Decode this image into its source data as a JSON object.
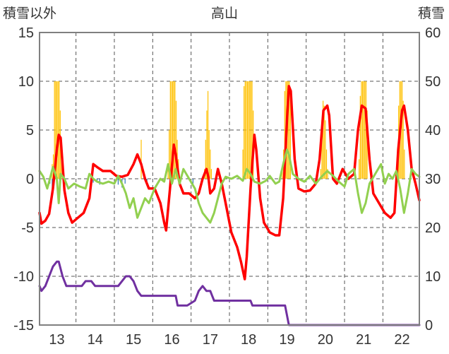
{
  "chart_data": {
    "type": "line",
    "title": "高山",
    "ylabel_left": "積雪以外",
    "ylabel_right": "積雪",
    "ylim_left": [
      -15,
      15
    ],
    "ylim_right": [
      0,
      60
    ],
    "yticks_left": [
      "15",
      "10",
      "5",
      "0",
      "-5",
      "-10",
      "-15"
    ],
    "yticks_right": [
      "60",
      "50",
      "40",
      "30",
      "20",
      "10",
      "0"
    ],
    "xlim": [
      12.55,
      22.45
    ],
    "x_categories": [
      "13",
      "14",
      "15",
      "16",
      "17",
      "18",
      "19",
      "20",
      "21",
      "22"
    ],
    "grid": true,
    "colors": {
      "red_line": "#ff0000",
      "green_line": "#92d050",
      "purple_line": "#7030a0",
      "bars": "#ffc000",
      "blue_bars": "#2e75b6",
      "axis": "#808080",
      "grid": "#555555"
    },
    "series": [
      {
        "style": "line",
        "color_key": "red_line",
        "axis": "left",
        "points": [
          [
            12.55,
            -3.5
          ],
          [
            12.6,
            -4.6
          ],
          [
            12.7,
            -4.3
          ],
          [
            12.8,
            -3.6
          ],
          [
            12.9,
            -1.0
          ],
          [
            13.0,
            3.0
          ],
          [
            13.05,
            4.5
          ],
          [
            13.1,
            4.2
          ],
          [
            13.2,
            -1.2
          ],
          [
            13.3,
            -3.5
          ],
          [
            13.4,
            -4.5
          ],
          [
            13.55,
            -4.0
          ],
          [
            13.7,
            -3.5
          ],
          [
            13.85,
            -2.0
          ],
          [
            13.95,
            1.5
          ],
          [
            14.05,
            1.2
          ],
          [
            14.2,
            0.8
          ],
          [
            14.4,
            0.8
          ],
          [
            14.55,
            0.3
          ],
          [
            14.7,
            0.2
          ],
          [
            14.85,
            0.4
          ],
          [
            15.0,
            1.5
          ],
          [
            15.1,
            2.5
          ],
          [
            15.2,
            1.5
          ],
          [
            15.3,
            0.0
          ],
          [
            15.4,
            -1.0
          ],
          [
            15.55,
            -1.0
          ],
          [
            15.7,
            -2.5
          ],
          [
            15.8,
            -4.5
          ],
          [
            15.85,
            -5.3
          ],
          [
            15.95,
            -1.0
          ],
          [
            16.05,
            3.5
          ],
          [
            16.1,
            2.5
          ],
          [
            16.2,
            -0.5
          ],
          [
            16.3,
            -1.5
          ],
          [
            16.45,
            -1.5
          ],
          [
            16.6,
            -2.0
          ],
          [
            16.7,
            -1.5
          ],
          [
            16.8,
            0.0
          ],
          [
            16.9,
            1.0
          ],
          [
            16.95,
            0.2
          ],
          [
            17.0,
            -1.5
          ],
          [
            17.1,
            -1.0
          ],
          [
            17.2,
            1.0
          ],
          [
            17.3,
            -0.5
          ],
          [
            17.4,
            -2.5
          ],
          [
            17.55,
            -5.5
          ],
          [
            17.7,
            -7.0
          ],
          [
            17.8,
            -8.5
          ],
          [
            17.9,
            -10.3
          ],
          [
            17.95,
            -8.0
          ],
          [
            18.05,
            -1.0
          ],
          [
            18.15,
            4.5
          ],
          [
            18.2,
            3.0
          ],
          [
            18.3,
            -2.0
          ],
          [
            18.4,
            -4.5
          ],
          [
            18.55,
            -5.5
          ],
          [
            18.7,
            -5.8
          ],
          [
            18.8,
            -5.8
          ],
          [
            18.9,
            -2.0
          ],
          [
            19.0,
            6.0
          ],
          [
            19.05,
            9.5
          ],
          [
            19.1,
            9.0
          ],
          [
            19.2,
            2.0
          ],
          [
            19.3,
            -1.0
          ],
          [
            19.45,
            -1.3
          ],
          [
            19.6,
            -1.2
          ],
          [
            19.75,
            -0.5
          ],
          [
            19.85,
            2.0
          ],
          [
            19.95,
            7.0
          ],
          [
            20.05,
            7.5
          ],
          [
            20.1,
            6.5
          ],
          [
            20.2,
            0.0
          ],
          [
            20.3,
            -0.5
          ],
          [
            20.45,
            1.0
          ],
          [
            20.6,
            0.0
          ],
          [
            20.75,
            0.5
          ],
          [
            20.85,
            5.0
          ],
          [
            20.95,
            7.5
          ],
          [
            21.05,
            7.2
          ],
          [
            21.15,
            2.0
          ],
          [
            21.25,
            -1.5
          ],
          [
            21.4,
            -2.5
          ],
          [
            21.55,
            -3.5
          ],
          [
            21.7,
            -4.0
          ],
          [
            21.8,
            -3.5
          ],
          [
            21.9,
            3.0
          ],
          [
            22.0,
            7.0
          ],
          [
            22.05,
            7.5
          ],
          [
            22.15,
            5.0
          ],
          [
            22.25,
            1.0
          ],
          [
            22.35,
            -0.5
          ],
          [
            22.45,
            -2.2
          ]
        ]
      },
      {
        "style": "line",
        "color_key": "green_line",
        "axis": "left",
        "points": [
          [
            12.55,
            0.8
          ],
          [
            12.65,
            0.2
          ],
          [
            12.75,
            -1.0
          ],
          [
            12.8,
            -0.3
          ],
          [
            12.9,
            1.2
          ],
          [
            13.0,
            0.0
          ],
          [
            13.05,
            -2.5
          ],
          [
            13.1,
            0.5
          ],
          [
            13.2,
            0.0
          ],
          [
            13.3,
            -1.0
          ],
          [
            13.45,
            -0.5
          ],
          [
            13.6,
            -0.8
          ],
          [
            13.75,
            -1.0
          ],
          [
            13.85,
            0.5
          ],
          [
            13.95,
            0.0
          ],
          [
            14.05,
            -0.3
          ],
          [
            14.2,
            -0.5
          ],
          [
            14.35,
            -0.3
          ],
          [
            14.5,
            -0.5
          ],
          [
            14.6,
            0.3
          ],
          [
            14.7,
            -0.5
          ],
          [
            14.8,
            -1.5
          ],
          [
            14.9,
            -3.0
          ],
          [
            15.0,
            -2.0
          ],
          [
            15.1,
            -4.0
          ],
          [
            15.2,
            -3.0
          ],
          [
            15.3,
            -2.0
          ],
          [
            15.4,
            -2.5
          ],
          [
            15.55,
            -1.0
          ],
          [
            15.7,
            0.0
          ],
          [
            15.8,
            -0.3
          ],
          [
            15.9,
            1.5
          ],
          [
            16.0,
            -0.5
          ],
          [
            16.1,
            1.0
          ],
          [
            16.2,
            -0.5
          ],
          [
            16.3,
            1.0
          ],
          [
            16.45,
            0.0
          ],
          [
            16.6,
            -1.0
          ],
          [
            16.7,
            -2.5
          ],
          [
            16.8,
            -3.5
          ],
          [
            16.9,
            -4.0
          ],
          [
            17.0,
            -4.5
          ],
          [
            17.1,
            -3.5
          ],
          [
            17.2,
            -2.0
          ],
          [
            17.3,
            -0.5
          ],
          [
            17.4,
            0.2
          ],
          [
            17.55,
            0.0
          ],
          [
            17.7,
            0.3
          ],
          [
            17.85,
            -0.2
          ],
          [
            17.95,
            1.0
          ],
          [
            18.05,
            0.5
          ],
          [
            18.15,
            -0.3
          ],
          [
            18.3,
            -0.5
          ],
          [
            18.45,
            -0.2
          ],
          [
            18.55,
            0.3
          ],
          [
            18.7,
            -0.5
          ],
          [
            18.8,
            -0.3
          ],
          [
            18.9,
            1.5
          ],
          [
            19.0,
            3.0
          ],
          [
            19.05,
            2.5
          ],
          [
            19.15,
            0.5
          ],
          [
            19.3,
            0.0
          ],
          [
            19.45,
            -0.3
          ],
          [
            19.6,
            0.3
          ],
          [
            19.75,
            -0.5
          ],
          [
            19.9,
            0.2
          ],
          [
            20.05,
            0.8
          ],
          [
            20.2,
            0.3
          ],
          [
            20.35,
            -0.3
          ],
          [
            20.5,
            -0.8
          ],
          [
            20.6,
            0.5
          ],
          [
            20.75,
            1.0
          ],
          [
            20.85,
            -1.5
          ],
          [
            20.95,
            -3.5
          ],
          [
            21.05,
            -2.5
          ],
          [
            21.15,
            -0.5
          ],
          [
            21.3,
            0.5
          ],
          [
            21.45,
            1.5
          ],
          [
            21.55,
            -0.5
          ],
          [
            21.65,
            0.5
          ],
          [
            21.75,
            0.0
          ],
          [
            21.85,
            0.8
          ],
          [
            21.95,
            -1.0
          ],
          [
            22.05,
            -3.5
          ],
          [
            22.15,
            -1.5
          ],
          [
            22.25,
            1.0
          ],
          [
            22.35,
            0.5
          ],
          [
            22.45,
            0.2
          ]
        ]
      },
      {
        "style": "line",
        "color_key": "purple_line",
        "axis": "right",
        "points": [
          [
            12.55,
            8
          ],
          [
            12.6,
            7
          ],
          [
            12.7,
            8
          ],
          [
            12.8,
            10
          ],
          [
            12.9,
            12
          ],
          [
            13.0,
            13
          ],
          [
            13.05,
            13
          ],
          [
            13.15,
            10
          ],
          [
            13.25,
            8
          ],
          [
            13.35,
            8
          ],
          [
            13.5,
            8
          ],
          [
            13.65,
            8
          ],
          [
            13.75,
            9
          ],
          [
            13.9,
            9
          ],
          [
            14.0,
            8
          ],
          [
            14.2,
            8
          ],
          [
            14.4,
            8
          ],
          [
            14.6,
            8
          ],
          [
            14.7,
            9
          ],
          [
            14.8,
            10
          ],
          [
            14.9,
            10
          ],
          [
            15.0,
            9
          ],
          [
            15.1,
            7
          ],
          [
            15.2,
            6
          ],
          [
            15.5,
            6
          ],
          [
            15.8,
            6
          ],
          [
            16.1,
            6
          ],
          [
            16.15,
            4
          ],
          [
            16.4,
            4
          ],
          [
            16.6,
            5
          ],
          [
            16.7,
            7
          ],
          [
            16.8,
            8
          ],
          [
            16.9,
            7
          ],
          [
            17.0,
            7
          ],
          [
            17.05,
            6
          ],
          [
            17.1,
            5
          ],
          [
            17.4,
            5
          ],
          [
            17.7,
            5
          ],
          [
            18.05,
            5
          ],
          [
            18.1,
            4
          ],
          [
            18.5,
            4
          ],
          [
            18.95,
            4
          ],
          [
            19.05,
            0
          ],
          [
            19.5,
            0
          ],
          [
            20.5,
            0
          ],
          [
            21.5,
            0
          ],
          [
            22.45,
            0
          ]
        ]
      }
    ],
    "bars": {
      "color_key": "bars",
      "axis": "left",
      "width_days": 0.022,
      "items": [
        [
          12.88,
          1.5
        ],
        [
          12.91,
          2.5
        ],
        [
          12.94,
          10.0
        ],
        [
          12.97,
          10.0
        ],
        [
          13.0,
          10.0
        ],
        [
          13.03,
          10.0
        ],
        [
          13.06,
          10.0
        ],
        [
          13.09,
          7.0
        ],
        [
          13.12,
          4.0
        ],
        [
          15.2,
          4.0
        ],
        [
          15.9,
          1.0
        ],
        [
          15.93,
          5.0
        ],
        [
          15.96,
          10.0
        ],
        [
          15.99,
          10.0
        ],
        [
          16.02,
          10.0
        ],
        [
          16.05,
          10.0
        ],
        [
          16.08,
          10.0
        ],
        [
          16.11,
          8.0
        ],
        [
          16.14,
          4.0
        ],
        [
          16.17,
          2.0
        ],
        [
          16.85,
          1.0
        ],
        [
          16.88,
          4.0
        ],
        [
          16.91,
          7.0
        ],
        [
          16.94,
          9.0
        ],
        [
          16.97,
          5.0
        ],
        [
          17.0,
          3.0
        ],
        [
          17.03,
          1.0
        ],
        [
          17.85,
          3.0
        ],
        [
          17.88,
          9.5
        ],
        [
          17.91,
          10.0
        ],
        [
          17.94,
          10.0
        ],
        [
          17.97,
          10.0
        ],
        [
          18.0,
          10.0
        ],
        [
          18.03,
          10.0
        ],
        [
          18.06,
          10.0
        ],
        [
          18.09,
          10.0
        ],
        [
          18.12,
          7.0
        ],
        [
          18.88,
          1.0
        ],
        [
          18.91,
          3.0
        ],
        [
          18.94,
          9.0
        ],
        [
          18.97,
          10.0
        ],
        [
          19.0,
          10.0
        ],
        [
          19.03,
          10.0
        ],
        [
          19.06,
          10.0
        ],
        [
          19.09,
          9.0
        ],
        [
          19.88,
          1.0
        ],
        [
          19.91,
          6.0
        ],
        [
          19.94,
          8.0
        ],
        [
          19.97,
          7.5
        ],
        [
          20.0,
          6.0
        ],
        [
          20.03,
          3.0
        ],
        [
          20.06,
          1.0
        ],
        [
          20.88,
          2.0
        ],
        [
          20.91,
          8.5
        ],
        [
          20.94,
          10.0
        ],
        [
          20.97,
          10.0
        ],
        [
          21.0,
          10.0
        ],
        [
          21.03,
          10.0
        ],
        [
          21.06,
          10.0
        ],
        [
          21.09,
          7.0
        ],
        [
          21.88,
          3.0
        ],
        [
          21.91,
          7.5
        ],
        [
          21.94,
          10.0
        ],
        [
          21.97,
          10.0
        ],
        [
          22.0,
          10.0
        ],
        [
          22.03,
          8.0
        ],
        [
          22.06,
          3.0
        ]
      ]
    },
    "blue_bars": {
      "color_key": "blue_bars",
      "axis": "left",
      "width_days": 0.018,
      "items": [
        [
          12.82,
          -0.5
        ],
        [
          12.88,
          -1.0
        ],
        [
          13.95,
          -0.4
        ],
        [
          14.05,
          -0.4
        ],
        [
          14.12,
          -0.6
        ],
        [
          14.6,
          -0.6
        ],
        [
          14.7,
          -0.9
        ],
        [
          14.78,
          -0.5
        ],
        [
          15.35,
          -0.5
        ],
        [
          16.55,
          -0.6
        ]
      ]
    }
  }
}
